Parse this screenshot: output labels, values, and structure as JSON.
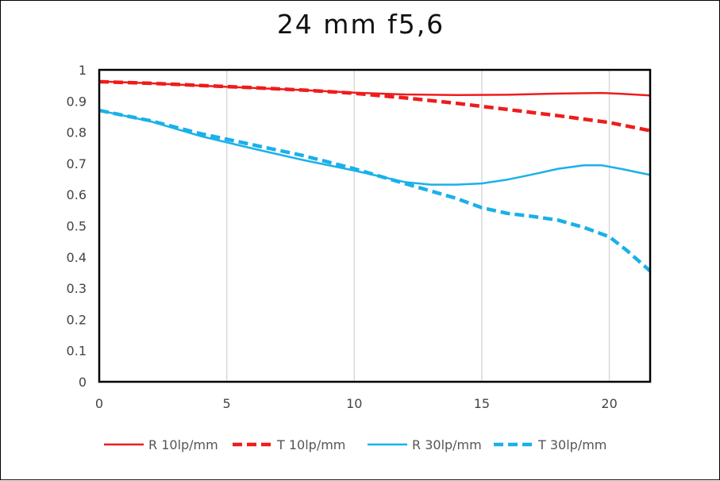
{
  "chart_data": {
    "type": "line",
    "title": "24 mm f5,6",
    "xlabel": "",
    "ylabel": "",
    "xlim": [
      0,
      21.6
    ],
    "ylim": [
      0,
      1
    ],
    "x_ticks": [
      0,
      5,
      10,
      15,
      20
    ],
    "y_ticks": [
      0,
      0.1,
      0.2,
      0.3,
      0.4,
      0.5,
      0.6,
      0.7,
      0.8,
      0.9,
      1
    ],
    "grid": "vertical",
    "legend_position": "bottom",
    "series": [
      {
        "name": "R 10lp/mm",
        "color": "#ee1c1c",
        "dash": "solid",
        "points": [
          [
            0,
            0.963
          ],
          [
            2,
            0.957
          ],
          [
            4,
            0.949
          ],
          [
            6,
            0.942
          ],
          [
            8,
            0.935
          ],
          [
            10,
            0.927
          ],
          [
            12,
            0.921
          ],
          [
            14,
            0.919
          ],
          [
            16,
            0.92
          ],
          [
            18,
            0.924
          ],
          [
            19.7,
            0.926
          ],
          [
            20.5,
            0.923
          ],
          [
            21.6,
            0.918
          ]
        ]
      },
      {
        "name": "T 10lp/mm",
        "color": "#ee1c1c",
        "dash": "dashed",
        "points": [
          [
            0,
            0.962
          ],
          [
            2,
            0.957
          ],
          [
            4,
            0.95
          ],
          [
            6,
            0.943
          ],
          [
            8,
            0.935
          ],
          [
            10,
            0.925
          ],
          [
            12,
            0.91
          ],
          [
            14,
            0.893
          ],
          [
            16,
            0.873
          ],
          [
            18,
            0.853
          ],
          [
            20,
            0.831
          ],
          [
            21.6,
            0.805
          ]
        ]
      },
      {
        "name": "R 30lp/mm",
        "color": "#1ab0ea",
        "dash": "solid",
        "points": [
          [
            0,
            0.87
          ],
          [
            2,
            0.835
          ],
          [
            4,
            0.787
          ],
          [
            6,
            0.748
          ],
          [
            8,
            0.711
          ],
          [
            10,
            0.677
          ],
          [
            12,
            0.64
          ],
          [
            13,
            0.632
          ],
          [
            14,
            0.632
          ],
          [
            15,
            0.636
          ],
          [
            16,
            0.648
          ],
          [
            17,
            0.665
          ],
          [
            18,
            0.683
          ],
          [
            19,
            0.694
          ],
          [
            19.7,
            0.694
          ],
          [
            20.5,
            0.682
          ],
          [
            21.6,
            0.663
          ]
        ]
      },
      {
        "name": "T 30lp/mm",
        "color": "#1ab0ea",
        "dash": "dashed",
        "points": [
          [
            0,
            0.87
          ],
          [
            2,
            0.837
          ],
          [
            4,
            0.795
          ],
          [
            6,
            0.76
          ],
          [
            8,
            0.725
          ],
          [
            10,
            0.683
          ],
          [
            12,
            0.635
          ],
          [
            14,
            0.588
          ],
          [
            15,
            0.558
          ],
          [
            16,
            0.54
          ],
          [
            17,
            0.53
          ],
          [
            18,
            0.518
          ],
          [
            19,
            0.495
          ],
          [
            20,
            0.465
          ],
          [
            20.7,
            0.42
          ],
          [
            21.6,
            0.355
          ]
        ]
      }
    ]
  }
}
